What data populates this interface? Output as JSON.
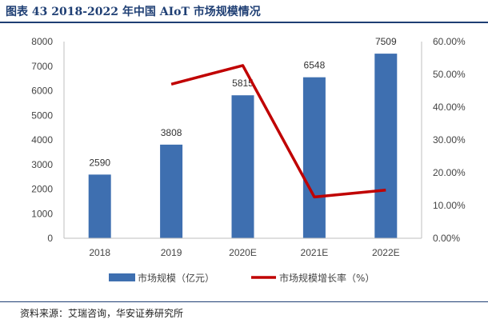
{
  "figure": {
    "title": "图表 43   2018-2022 年中国 AIoT 市场规模情况",
    "source": "资料来源：艾瑞咨询，华安证券研究所"
  },
  "chart_data": {
    "type": "bar",
    "categories": [
      "2018",
      "2019",
      "2020E",
      "2021E",
      "2022E"
    ],
    "series": [
      {
        "name": "市场规模（亿元）",
        "type": "bar",
        "axis": "left",
        "values": [
          2590,
          3808,
          5815,
          6548,
          7509
        ],
        "color": "#3e6fb0"
      },
      {
        "name": "市场规模增长率（%）",
        "type": "line",
        "axis": "right",
        "values": [
          null,
          47.0,
          52.7,
          12.6,
          14.7
        ],
        "color": "#c00000"
      }
    ],
    "data_labels": [
      "2590",
      "3808",
      "5815",
      "6548",
      "7509"
    ],
    "left_axis": {
      "min": 0,
      "max": 8000,
      "step": 1000,
      "ticks": [
        "0",
        "1000",
        "2000",
        "3000",
        "4000",
        "5000",
        "6000",
        "7000",
        "8000"
      ]
    },
    "right_axis": {
      "min": 0,
      "max": 60,
      "step": 10,
      "ticks": [
        "0.00%",
        "10.00%",
        "20.00%",
        "30.00%",
        "40.00%",
        "50.00%",
        "60.00%"
      ]
    },
    "grid": false,
    "legend_position": "bottom"
  }
}
